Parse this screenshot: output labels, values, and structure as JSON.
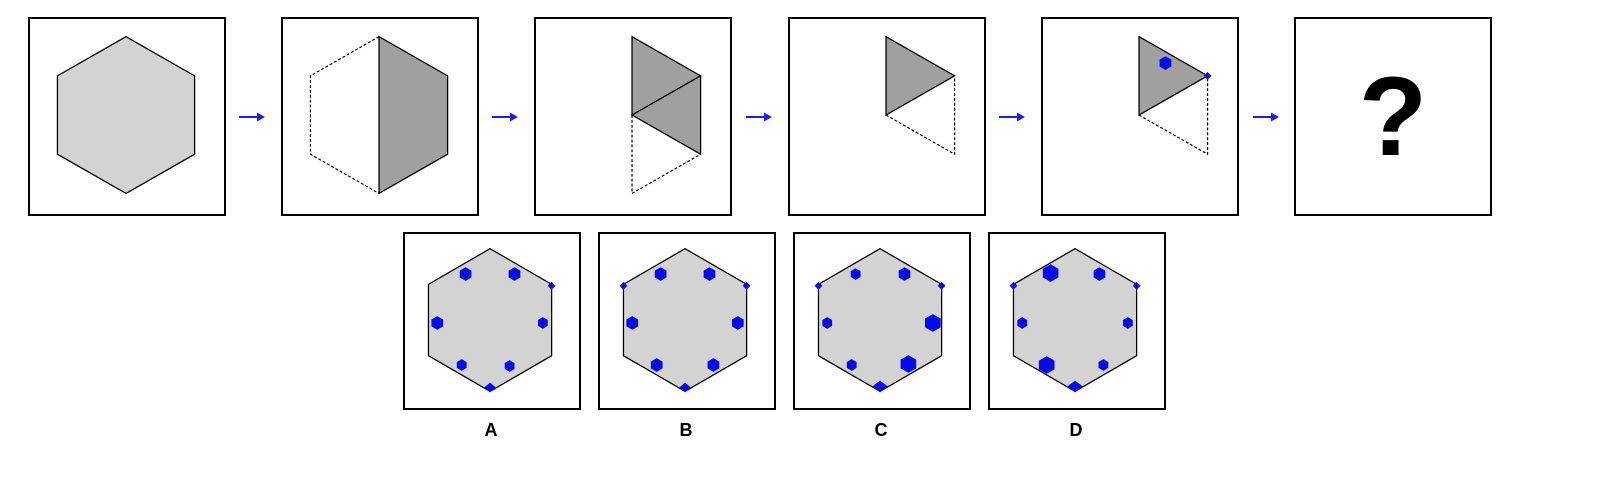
{
  "colors": {
    "hexagon_fill": "#d3d3d3",
    "fold_fill": "#a0a0a0",
    "outline": "#000000",
    "arrow": "#1a1aff",
    "hole": "#0a0ae6"
  },
  "sequence": {
    "step_count": 6,
    "question_mark": "?"
  },
  "options": [
    {
      "label": "A"
    },
    {
      "label": "B"
    },
    {
      "label": "C"
    },
    {
      "label": "D"
    }
  ]
}
